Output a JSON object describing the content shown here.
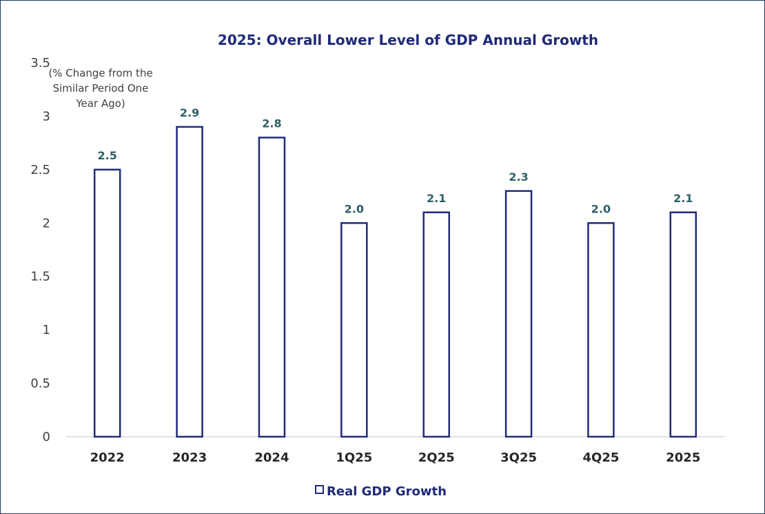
{
  "chart_data": {
    "type": "bar",
    "title": "2025: Overall Lower Level of GDP Annual Growth",
    "unit_label": [
      "(% Change from the",
      "Similar Period One",
      "Year Ago)"
    ],
    "categories": [
      "2022",
      "2023",
      "2024",
      "1Q25",
      "2Q25",
      "3Q25",
      "4Q25",
      "2025"
    ],
    "series": [
      {
        "name": "Real GDP Growth",
        "values": [
          2.5,
          2.9,
          2.8,
          2.0,
          2.1,
          2.3,
          2.0,
          2.1
        ],
        "labels": [
          "2.5",
          "2.9",
          "2.8",
          "2.0",
          "2.1",
          "2.3",
          "2.0",
          "2.1"
        ]
      }
    ],
    "yticks": [
      "0",
      "0.5",
      "1",
      "1.5",
      "2",
      "2.5",
      "3",
      "3.5"
    ],
    "ylim": [
      0,
      3.5
    ],
    "grid": false,
    "legend_position": "bottom",
    "colors": {
      "bar_fill": "#ffffff",
      "bar_stroke": "#1f2a78",
      "title": "#1f2a78",
      "data_label": "#2d5f66"
    }
  }
}
